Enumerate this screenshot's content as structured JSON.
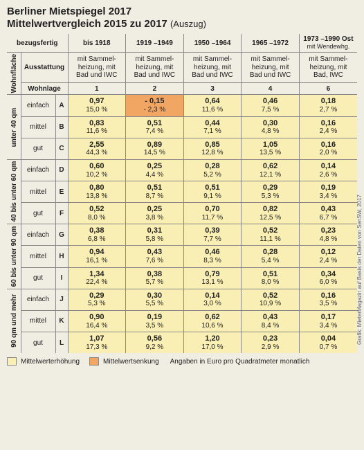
{
  "title": "Berliner Mietspiegel 2017",
  "subtitle_main": "Mittelwertvergleich 2015 zu 2017",
  "subtitle_note": "(Auszug)",
  "col_headers": {
    "bezugsfertig": "bezugsfertig",
    "ausstattung": "Ausstattung",
    "wohnlage": "Wohnlage",
    "wohnflaeche": "Wohnfläche"
  },
  "periods": [
    "bis 1918",
    "1919 –1949",
    "1950 –1964",
    "1965 –1972",
    "1973 –1990 Ost"
  ],
  "period_sub": [
    "",
    "",
    "",
    "",
    "mit Wendewhg."
  ],
  "ausstattung_text": "mit Sammel-\nheizung, mit\nBad und IWC",
  "ausstattung_text_5": "mit Sammel-\nheizung, mit\nBad, IWC",
  "wohnlage_nums": [
    "1",
    "2",
    "3",
    "4",
    "6"
  ],
  "size_groups": [
    {
      "label": "unter 40 qm",
      "rows": [
        {
          "lage": "einfach",
          "let": "A",
          "cells": [
            {
              "v": "0,97",
              "p": "15,0 %",
              "t": "inc"
            },
            {
              "v": "- 0,15",
              "p": "- 2,3 %",
              "t": "dec"
            },
            {
              "v": "0,64",
              "p": "11,6 %",
              "t": "inc"
            },
            {
              "v": "0,46",
              "p": "7,5 %",
              "t": "inc"
            },
            {
              "v": "0,18",
              "p": "2,7 %",
              "t": "inc"
            }
          ]
        },
        {
          "lage": "mittel",
          "let": "B",
          "cells": [
            {
              "v": "0,83",
              "p": "11,6 %",
              "t": "inc"
            },
            {
              "v": "0,51",
              "p": "7,4 %",
              "t": "inc"
            },
            {
              "v": "0,44",
              "p": "7,1 %",
              "t": "inc"
            },
            {
              "v": "0,30",
              "p": "4,8 %",
              "t": "inc"
            },
            {
              "v": "0,16",
              "p": "2,4 %",
              "t": "inc"
            }
          ]
        },
        {
          "lage": "gut",
          "let": "C",
          "cells": [
            {
              "v": "2,55",
              "p": "44,3 %",
              "t": "inc"
            },
            {
              "v": "0,89",
              "p": "14,5 %",
              "t": "inc"
            },
            {
              "v": "0,85",
              "p": "12,8 %",
              "t": "inc"
            },
            {
              "v": "1,05",
              "p": "13,5 %",
              "t": "inc"
            },
            {
              "v": "0,16",
              "p": "2,0 %",
              "t": "inc"
            }
          ]
        }
      ]
    },
    {
      "label": "40 bis unter 60 qm",
      "rows": [
        {
          "lage": "einfach",
          "let": "D",
          "cells": [
            {
              "v": "0,60",
              "p": "10,2 %",
              "t": "inc"
            },
            {
              "v": "0,25",
              "p": "4,4 %",
              "t": "inc"
            },
            {
              "v": "0,28",
              "p": "5,2 %",
              "t": "inc"
            },
            {
              "v": "0,62",
              "p": "12,1 %",
              "t": "inc"
            },
            {
              "v": "0,14",
              "p": "2,6 %",
              "t": "inc"
            }
          ]
        },
        {
          "lage": "mittel",
          "let": "E",
          "cells": [
            {
              "v": "0,80",
              "p": "13,8 %",
              "t": "inc"
            },
            {
              "v": "0,51",
              "p": "8,7 %",
              "t": "inc"
            },
            {
              "v": "0,51",
              "p": "9,1 %",
              "t": "inc"
            },
            {
              "v": "0,29",
              "p": "5,3 %",
              "t": "inc"
            },
            {
              "v": "0,19",
              "p": "3,4 %",
              "t": "inc"
            }
          ]
        },
        {
          "lage": "gut",
          "let": "F",
          "cells": [
            {
              "v": "0,52",
              "p": "8,0 %",
              "t": "inc"
            },
            {
              "v": "0,25",
              "p": "3,8 %",
              "t": "inc"
            },
            {
              "v": "0,70",
              "p": "11,7 %",
              "t": "inc"
            },
            {
              "v": "0,82",
              "p": "12,5 %",
              "t": "inc"
            },
            {
              "v": "0,43",
              "p": "6,7 %",
              "t": "inc"
            }
          ]
        }
      ]
    },
    {
      "label": "60 bis unter 90 qm",
      "rows": [
        {
          "lage": "einfach",
          "let": "G",
          "cells": [
            {
              "v": "0,38",
              "p": "6,8 %",
              "t": "inc"
            },
            {
              "v": "0,31",
              "p": "5,8 %",
              "t": "inc"
            },
            {
              "v": "0,39",
              "p": "7,7 %",
              "t": "inc"
            },
            {
              "v": "0,52",
              "p": "11,1 %",
              "t": "inc"
            },
            {
              "v": "0,23",
              "p": "4,8 %",
              "t": "inc"
            }
          ]
        },
        {
          "lage": "mittel",
          "let": "H",
          "cells": [
            {
              "v": "0,94",
              "p": "16,1 %",
              "t": "inc"
            },
            {
              "v": "0,43",
              "p": "7,6 %",
              "t": "inc"
            },
            {
              "v": "0,46",
              "p": "8,3 %",
              "t": "inc"
            },
            {
              "v": "0,28",
              "p": "5,4 %",
              "t": "inc"
            },
            {
              "v": "0,12",
              "p": "2,4 %",
              "t": "inc"
            }
          ]
        },
        {
          "lage": "gut",
          "let": "I",
          "cells": [
            {
              "v": "1,34",
              "p": "22,4 %",
              "t": "inc"
            },
            {
              "v": "0,38",
              "p": "5,7 %",
              "t": "inc"
            },
            {
              "v": "0,79",
              "p": "13,1 %",
              "t": "inc"
            },
            {
              "v": "0,51",
              "p": "8,0 %",
              "t": "inc"
            },
            {
              "v": "0,34",
              "p": "6,0 %",
              "t": "inc"
            }
          ]
        }
      ]
    },
    {
      "label": "90 qm und mehr",
      "rows": [
        {
          "lage": "einfach",
          "let": "J",
          "cells": [
            {
              "v": "0,29",
              "p": "5,3 %",
              "t": "inc"
            },
            {
              "v": "0,30",
              "p": "5,5 %",
              "t": "inc"
            },
            {
              "v": "0,14",
              "p": "3,0 %",
              "t": "inc"
            },
            {
              "v": "0,52",
              "p": "10,9 %",
              "t": "inc"
            },
            {
              "v": "0,16",
              "p": "3,5 %",
              "t": "inc"
            }
          ]
        },
        {
          "lage": "mittel",
          "let": "K",
          "cells": [
            {
              "v": "0,90",
              "p": "16,4 %",
              "t": "inc"
            },
            {
              "v": "0,19",
              "p": "3,5 %",
              "t": "inc"
            },
            {
              "v": "0,62",
              "p": "10,6 %",
              "t": "inc"
            },
            {
              "v": "0,43",
              "p": "8,4 %",
              "t": "inc"
            },
            {
              "v": "0,17",
              "p": "3,4 %",
              "t": "inc"
            }
          ]
        },
        {
          "lage": "gut",
          "let": "L",
          "cells": [
            {
              "v": "1,07",
              "p": "17,3 %",
              "t": "inc"
            },
            {
              "v": "0,56",
              "p": "9,2 %",
              "t": "inc"
            },
            {
              "v": "1,20",
              "p": "17,0 %",
              "t": "inc"
            },
            {
              "v": "0,23",
              "p": "2,9 %",
              "t": "inc"
            },
            {
              "v": "0,04",
              "p": "0,7 %",
              "t": "inc"
            }
          ]
        }
      ]
    }
  ],
  "legend": {
    "inc_label": "Mittelwerterhöhung",
    "dec_label": "Mittelwertsenkung",
    "unit": "Angaben in Euro pro Quadratmeter monatlich"
  },
  "credit": "Grafik: MieterMagazin auf Basis der Daten von SenSW, 2017",
  "colors": {
    "inc": "#f9eeb4",
    "dec": "#f2a664",
    "bg": "#f0ede3",
    "border": "#888888"
  }
}
